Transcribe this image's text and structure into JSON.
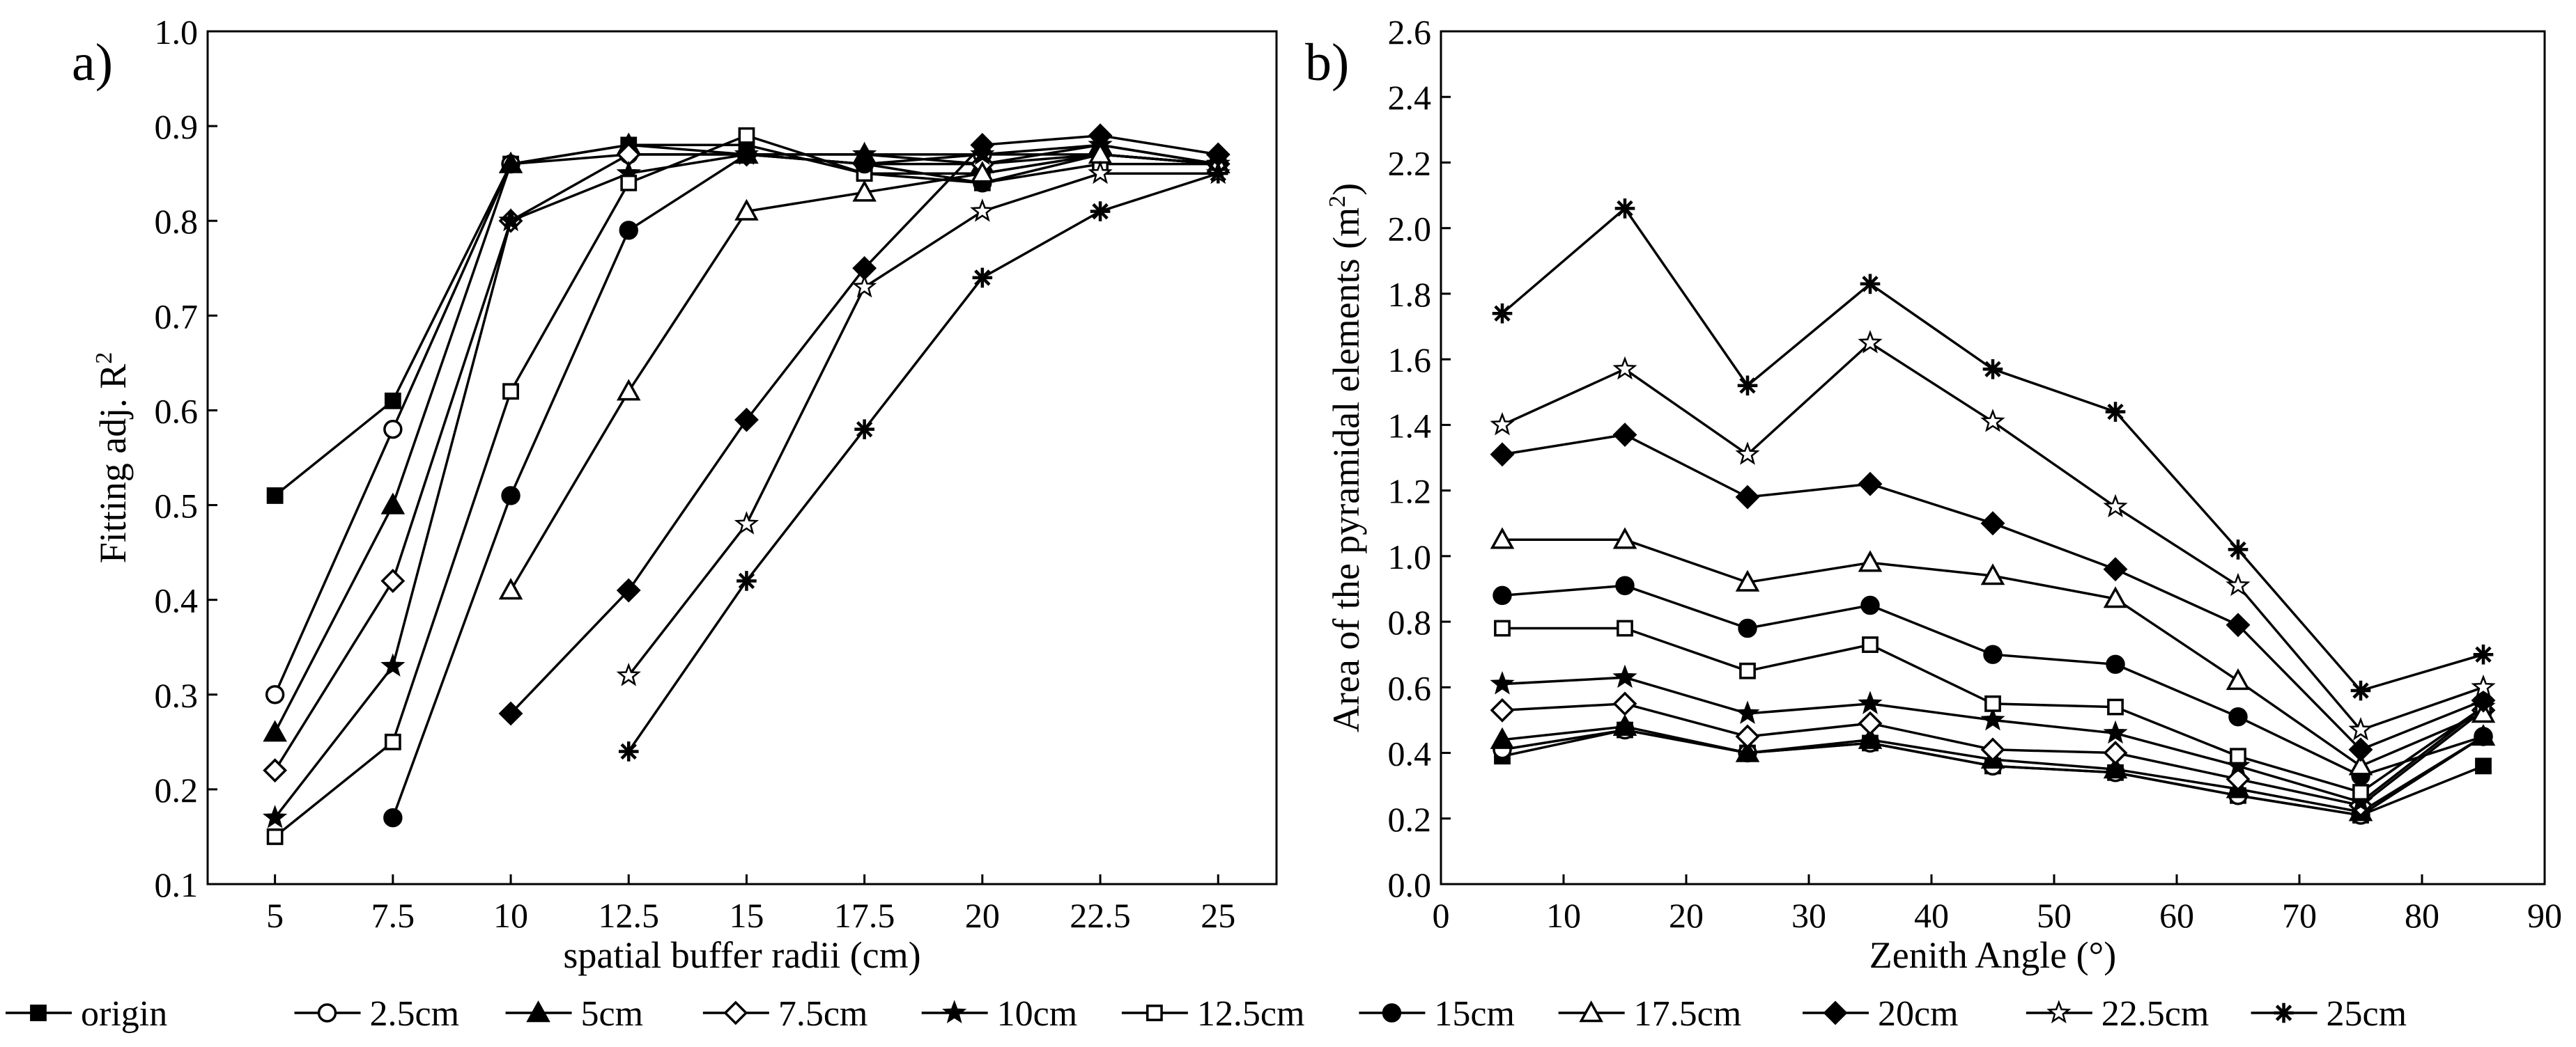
{
  "series_styles": [
    {
      "name": "origin",
      "label": "origin",
      "marker": "square",
      "fill": "filled"
    },
    {
      "name": "2.5cm",
      "label": "2.5cm",
      "marker": "circle",
      "fill": "open"
    },
    {
      "name": "5cm",
      "label": "5cm",
      "marker": "triangle",
      "fill": "filled"
    },
    {
      "name": "7.5cm",
      "label": "7.5cm",
      "marker": "diamond",
      "fill": "open"
    },
    {
      "name": "10cm",
      "label": "10cm",
      "marker": "star",
      "fill": "filled"
    },
    {
      "name": "12.5cm",
      "label": "12.5cm",
      "marker": "square",
      "fill": "open"
    },
    {
      "name": "15cm",
      "label": "15cm",
      "marker": "circle",
      "fill": "filled"
    },
    {
      "name": "17.5cm",
      "label": "17.5cm",
      "marker": "triangle",
      "fill": "open"
    },
    {
      "name": "20cm",
      "label": "20cm",
      "marker": "diamond",
      "fill": "filled"
    },
    {
      "name": "22.5cm",
      "label": "22.5cm",
      "marker": "star",
      "fill": "open"
    },
    {
      "name": "25cm",
      "label": "25cm",
      "marker": "asterisk",
      "fill": "line"
    }
  ],
  "colors": {
    "line": "#000000",
    "background": "#ffffff"
  },
  "chart_data": [
    {
      "type": "line",
      "panel_label": "a)",
      "xlabel": "spatial buffer radii (cm)",
      "ylabel": "Fitting adj. R",
      "ylabel_sup": "2",
      "categories": [
        "5",
        "7.5",
        "10",
        "12.5",
        "15",
        "17.5",
        "20",
        "22.5",
        "25"
      ],
      "ylim": [
        0.1,
        1.0
      ],
      "yticks": [
        "0.1",
        "0.2",
        "0.3",
        "0.4",
        "0.5",
        "0.6",
        "0.7",
        "0.8",
        "0.9",
        "1.0"
      ],
      "yticks_values": [
        0.1,
        0.2,
        0.3,
        0.4,
        0.5,
        0.6,
        0.7,
        0.8,
        0.9,
        1.0
      ],
      "grid": false,
      "series": [
        {
          "name": "origin",
          "values": [
            0.51,
            0.61,
            0.86,
            0.88,
            0.88,
            0.85,
            0.85,
            0.87,
            0.86
          ]
        },
        {
          "name": "2.5cm",
          "values": [
            0.3,
            0.58,
            0.86,
            0.87,
            0.87,
            0.86,
            0.87,
            0.87,
            0.86
          ]
        },
        {
          "name": "5cm",
          "values": [
            0.26,
            0.5,
            0.86,
            0.88,
            0.87,
            0.87,
            0.86,
            0.88,
            0.86
          ]
        },
        {
          "name": "7.5cm",
          "values": [
            0.22,
            0.42,
            0.8,
            0.87,
            0.87,
            0.86,
            0.86,
            0.87,
            0.86
          ]
        },
        {
          "name": "10cm",
          "values": [
            0.17,
            0.33,
            0.8,
            0.85,
            0.87,
            0.87,
            0.87,
            0.88,
            0.86
          ]
        },
        {
          "name": "12.5cm",
          "values": [
            0.15,
            0.25,
            0.62,
            0.84,
            0.89,
            0.85,
            0.84,
            0.86,
            0.86
          ]
        },
        {
          "name": "15cm",
          "values": [
            null,
            0.17,
            0.51,
            0.79,
            0.87,
            0.86,
            0.84,
            0.87,
            0.86
          ]
        },
        {
          "name": "17.5cm",
          "values": [
            null,
            null,
            0.41,
            0.62,
            0.81,
            0.83,
            0.85,
            0.87,
            0.86
          ]
        },
        {
          "name": "20cm",
          "values": [
            null,
            null,
            0.28,
            0.41,
            0.59,
            0.75,
            0.88,
            0.89,
            0.87
          ]
        },
        {
          "name": "22.5cm",
          "values": [
            null,
            null,
            null,
            0.32,
            0.48,
            0.73,
            0.81,
            0.85,
            0.85
          ]
        },
        {
          "name": "25cm",
          "values": [
            null,
            null,
            null,
            0.24,
            0.42,
            0.58,
            0.74,
            0.81,
            0.85
          ]
        }
      ]
    },
    {
      "type": "line",
      "panel_label": "b)",
      "xlabel": "Zenith Angle (°)",
      "ylabel": "Area of the pyramidal elements (m",
      "ylabel_sup": "2",
      "ylabel_tail": ")",
      "x": [
        5,
        15,
        25,
        35,
        45,
        55,
        65,
        75,
        85
      ],
      "xlim": [
        0,
        90
      ],
      "xticks": [
        "0",
        "10",
        "20",
        "30",
        "40",
        "50",
        "60",
        "70",
        "80",
        "90"
      ],
      "xticks_values": [
        0,
        10,
        20,
        30,
        40,
        50,
        60,
        70,
        80,
        90
      ],
      "ylim": [
        0.0,
        2.6
      ],
      "yticks": [
        "0.0",
        "0.2",
        "0.4",
        "0.6",
        "0.8",
        "1.0",
        "1.2",
        "1.4",
        "1.6",
        "1.8",
        "2.0",
        "2.2",
        "2.4",
        "2.6"
      ],
      "yticks_values": [
        0.0,
        0.2,
        0.4,
        0.6,
        0.8,
        1.0,
        1.2,
        1.4,
        1.6,
        1.8,
        2.0,
        2.2,
        2.4,
        2.6
      ],
      "grid": false,
      "series": [
        {
          "name": "origin",
          "values": [
            0.39,
            0.47,
            0.4,
            0.43,
            0.36,
            0.34,
            0.27,
            0.21,
            0.36
          ]
        },
        {
          "name": "2.5cm",
          "values": [
            0.41,
            0.47,
            0.4,
            0.43,
            0.36,
            0.34,
            0.27,
            0.21,
            0.45
          ]
        },
        {
          "name": "5cm",
          "values": [
            0.44,
            0.48,
            0.4,
            0.44,
            0.38,
            0.35,
            0.29,
            0.22,
            0.45
          ]
        },
        {
          "name": "7.5cm",
          "values": [
            0.53,
            0.55,
            0.45,
            0.49,
            0.41,
            0.4,
            0.32,
            0.24,
            0.53
          ]
        },
        {
          "name": "10cm",
          "values": [
            0.61,
            0.63,
            0.52,
            0.55,
            0.5,
            0.46,
            0.36,
            0.25,
            0.54
          ]
        },
        {
          "name": "12.5cm",
          "values": [
            0.78,
            0.78,
            0.65,
            0.73,
            0.55,
            0.54,
            0.39,
            0.28,
            0.54
          ]
        },
        {
          "name": "15cm",
          "values": [
            0.88,
            0.91,
            0.78,
            0.85,
            0.7,
            0.67,
            0.51,
            0.33,
            0.45
          ]
        },
        {
          "name": "17.5cm",
          "values": [
            1.05,
            1.05,
            0.92,
            0.98,
            0.94,
            0.87,
            0.62,
            0.36,
            0.52
          ]
        },
        {
          "name": "20cm",
          "values": [
            1.31,
            1.37,
            1.18,
            1.22,
            1.1,
            0.96,
            0.79,
            0.41,
            0.56
          ]
        },
        {
          "name": "22.5cm",
          "values": [
            1.4,
            1.57,
            1.31,
            1.65,
            1.41,
            1.15,
            0.91,
            0.47,
            0.6
          ]
        },
        {
          "name": "25cm",
          "values": [
            1.74,
            2.06,
            1.52,
            1.83,
            1.57,
            1.44,
            1.02,
            0.59,
            0.7
          ]
        }
      ]
    }
  ]
}
